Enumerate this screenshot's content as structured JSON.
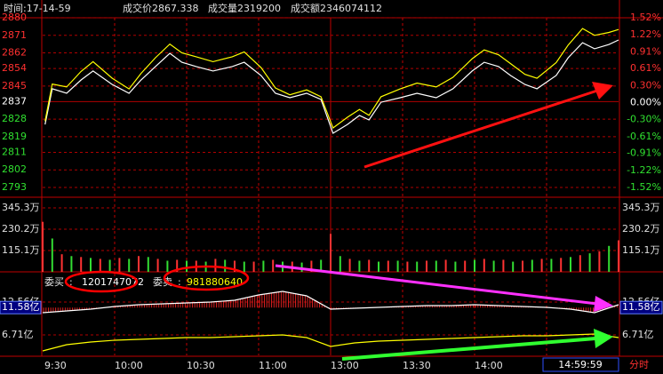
{
  "header": [
    "时间:17-14-59",
    "成交价2867.338",
    "成交量2319200",
    "成交额2346074112"
  ],
  "footer": {
    "mode": "分时",
    "clock": "14:59:59"
  },
  "chart_data": [
    {
      "type": "line",
      "ylim": [
        2793,
        2880
      ],
      "yticks": [
        2880,
        2871,
        2862,
        2854,
        2845,
        2837,
        2828,
        2819,
        2811,
        2802,
        2793
      ],
      "y2lim": [
        -1.52,
        1.52
      ],
      "y2ticks": [
        {
          "value": 1.52,
          "label": "1.52%"
        },
        {
          "value": 1.22,
          "label": "1.22%"
        },
        {
          "value": 0.91,
          "label": "0.91%"
        },
        {
          "value": 0.61,
          "label": "0.61%"
        },
        {
          "value": 0.3,
          "label": "0.30%"
        },
        {
          "value": 0,
          "label": "0.00%"
        },
        {
          "value": -0.3,
          "label": "-0.30%"
        },
        {
          "value": -0.61,
          "label": "-0.61%"
        },
        {
          "value": -0.91,
          "label": "-0.91%"
        },
        {
          "value": -1.22,
          "label": "-1.22%"
        },
        {
          "value": -1.52,
          "label": "-1.52%"
        }
      ],
      "xlim": [
        0,
        240
      ],
      "x": [
        1,
        4,
        10,
        16,
        21,
        29,
        36,
        41,
        47,
        53,
        58,
        64,
        71,
        79,
        84,
        91,
        97,
        103,
        110,
        116,
        121,
        127,
        132,
        136,
        141,
        149,
        156,
        164,
        171,
        179,
        184,
        190,
        195,
        201,
        206,
        214,
        219,
        225,
        230,
        236,
        240
      ],
      "series": [
        {
          "color": "#ffffff",
          "values": [
            2825.3,
            2843.6,
            2841.3,
            2848.1,
            2852.7,
            2845.8,
            2841.3,
            2848.1,
            2855.0,
            2861.8,
            2857.2,
            2855.0,
            2852.7,
            2855.0,
            2857.2,
            2850.4,
            2841.3,
            2839.0,
            2841.3,
            2838.1,
            2820.8,
            2825.3,
            2829.9,
            2827.6,
            2836.7,
            2839.0,
            2841.3,
            2839.0,
            2843.6,
            2852.7,
            2857.2,
            2855.0,
            2850.4,
            2845.8,
            2843.6,
            2850.4,
            2859.5,
            2867.2,
            2864.1,
            2866.3,
            2868.6
          ]
        },
        {
          "color": "#ffff00",
          "values": [
            2827.0,
            2846.0,
            2844.5,
            2852.5,
            2857.5,
            2849.0,
            2843.5,
            2851.5,
            2859.5,
            2866.5,
            2862.0,
            2860.0,
            2857.5,
            2860.0,
            2862.5,
            2854.5,
            2844.0,
            2840.5,
            2843.0,
            2839.5,
            2823.5,
            2829.0,
            2833.0,
            2830.0,
            2839.5,
            2843.5,
            2846.5,
            2844.5,
            2849.5,
            2859.0,
            2863.5,
            2861.0,
            2856.5,
            2851.0,
            2849.0,
            2857.0,
            2866.0,
            2874.5,
            2871.0,
            2872.5,
            2874.0
          ]
        }
      ]
    },
    {
      "type": "bar",
      "ylim": [
        0,
        345.3
      ],
      "yticks": [
        {
          "value": 345.3,
          "label": "345.3万"
        },
        {
          "value": 230.2,
          "label": "230.2万"
        },
        {
          "value": 115.1,
          "label": "115.1万"
        }
      ],
      "xlim": [
        0,
        240
      ],
      "series": [
        {
          "color": "#ff3232",
          "x": [
            0,
            8,
            16,
            24,
            32,
            40,
            48,
            56,
            64,
            72,
            80,
            88,
            96,
            104,
            112,
            120,
            128,
            136,
            144,
            152,
            160,
            168,
            176,
            184,
            192,
            200,
            208,
            216,
            224,
            232,
            240
          ],
          "values": [
            270,
            95,
            80,
            70,
            75,
            85,
            70,
            65,
            60,
            70,
            60,
            55,
            65,
            55,
            60,
            205,
            70,
            65,
            60,
            55,
            60,
            65,
            60,
            70,
            65,
            60,
            70,
            75,
            90,
            110,
            170
          ]
        },
        {
          "color": "#33dd33",
          "x": [
            4,
            12,
            20,
            28,
            36,
            44,
            52,
            60,
            68,
            76,
            84,
            92,
            100,
            108,
            116,
            124,
            132,
            140,
            148,
            156,
            164,
            172,
            180,
            188,
            196,
            204,
            212,
            220,
            228,
            236
          ],
          "values": [
            180,
            85,
            75,
            65,
            70,
            80,
            60,
            60,
            55,
            65,
            55,
            60,
            55,
            50,
            65,
            85,
            60,
            55,
            60,
            55,
            60,
            55,
            65,
            60,
            55,
            65,
            70,
            80,
            100,
            140
          ]
        }
      ]
    },
    {
      "type": "line",
      "ylim": [
        3.08,
        15.72
      ],
      "yticks": [
        {
          "value": 12.56,
          "label": "12.56亿"
        },
        {
          "value": 6.71,
          "label": "6.71亿"
        }
      ],
      "marker": {
        "value": 11.58,
        "label": "11.58亿"
      },
      "bid_label": "委买",
      "bid_value": "1201747072",
      "ask_label": "委卖",
      "ask_value": "981880640",
      "xlim": [
        0,
        240
      ],
      "xticks": [
        {
          "value": 0,
          "label": "9:30"
        },
        {
          "value": 30,
          "label": "10:00"
        },
        {
          "value": 60,
          "label": "10:30"
        },
        {
          "value": 90,
          "label": "11:00"
        },
        {
          "value": 120,
          "label": "13:00"
        },
        {
          "value": 150,
          "label": "13:30"
        },
        {
          "value": 180,
          "label": "14:00"
        },
        {
          "value": 210,
          "label": ""
        }
      ],
      "x": [
        0,
        10,
        20,
        30,
        40,
        50,
        60,
        70,
        80,
        90,
        100,
        110,
        120,
        130,
        140,
        150,
        160,
        170,
        180,
        190,
        200,
        210,
        220,
        230,
        240
      ],
      "series": [
        {
          "color": "#ffffff",
          "values": [
            10.66,
            10.98,
            11.3,
            11.77,
            12.09,
            12.24,
            12.4,
            12.56,
            12.88,
            13.82,
            14.46,
            13.67,
            11.3,
            11.45,
            11.61,
            11.77,
            11.93,
            11.93,
            12.09,
            11.93,
            11.77,
            11.61,
            11.3,
            10.66,
            12.09
          ]
        },
        {
          "color": "#ffff00",
          "values": [
            3.87,
            4.98,
            5.45,
            5.77,
            5.93,
            6.08,
            6.24,
            6.24,
            6.4,
            6.56,
            6.72,
            6.24,
            4.66,
            5.29,
            5.61,
            5.77,
            5.93,
            6.08,
            6.24,
            6.4,
            6.56,
            6.56,
            6.72,
            6.87,
            6.24
          ]
        }
      ]
    }
  ]
}
